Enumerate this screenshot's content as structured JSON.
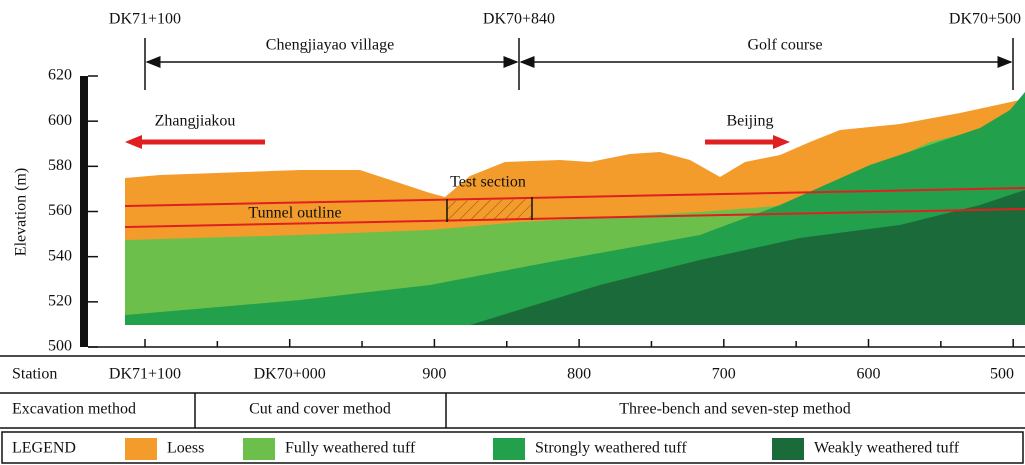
{
  "header": {
    "markers": [
      "DK71+100",
      "DK70+840",
      "DK70+500"
    ],
    "zones": [
      "Chengjiayao village",
      "Golf course"
    ]
  },
  "directions": {
    "left": "Zhangjiakou",
    "right": "Beijing"
  },
  "annotations": {
    "test_section": "Test section",
    "tunnel": "Tunnel outline"
  },
  "elevation_axis": {
    "label": "Elevation (m)",
    "ticks": [
      500,
      520,
      540,
      560,
      580,
      600,
      620
    ]
  },
  "station_row": {
    "label": "Station",
    "stations": [
      "DK71+100",
      "DK70+000",
      "900",
      "800",
      "700",
      "600",
      "500"
    ]
  },
  "excavation_row": {
    "label": "Excavation method",
    "methods": [
      "Cut and cover method",
      "Three-bench and seven-step method"
    ]
  },
  "legend": {
    "title": "LEGEND",
    "items": [
      {
        "label": "Loess",
        "color": "#f39c2c"
      },
      {
        "label": "Fully weathered tuff",
        "color": "#6cbf4b"
      },
      {
        "label": "Strongly weathered tuff",
        "color": "#22a04b"
      },
      {
        "label": "Weakly weathered tuff",
        "color": "#1b6b3a"
      }
    ]
  }
}
